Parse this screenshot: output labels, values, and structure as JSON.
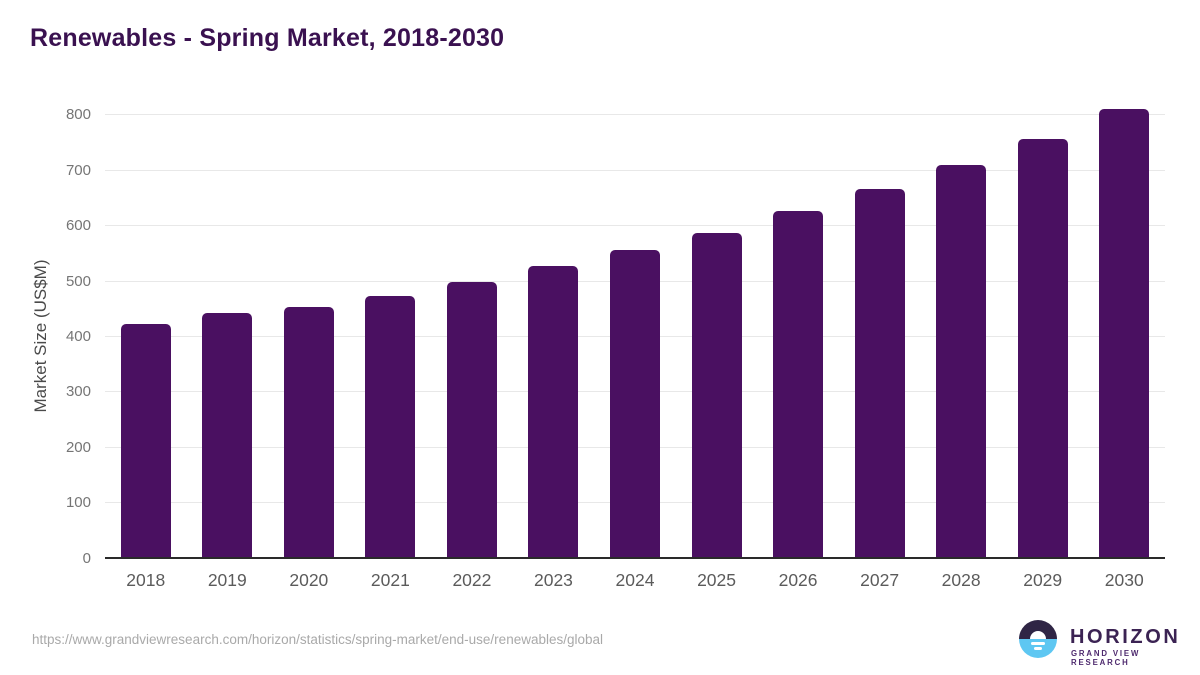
{
  "title": "Renewables - Spring Market, 2018-2030",
  "source_url": "https://www.grandviewresearch.com/horizon/statistics/spring-market/end-use/renewables/global",
  "logo": {
    "name": "HORIZON",
    "subtitle": "GRAND VIEW RESEARCH"
  },
  "colors": {
    "bar": "#4a1061",
    "title": "#3a1150",
    "tick": "#757575",
    "xtick": "#5b5b5b",
    "axis_label": "#4a4a4a",
    "gridline": "#e8e8e8",
    "axis_line": "#2a2a2a",
    "url": "#a9a9a9",
    "logo_dark": "#2f2545",
    "logo_blue": "#5ec7f2",
    "logo_text": "#3b2353",
    "logo_sub": "#4e2a6e"
  },
  "chart_data": {
    "type": "bar",
    "title": "Renewables - Spring Market, 2018-2030",
    "categories": [
      "2018",
      "2019",
      "2020",
      "2021",
      "2022",
      "2023",
      "2024",
      "2025",
      "2026",
      "2027",
      "2028",
      "2029",
      "2030"
    ],
    "values": [
      420,
      440,
      450,
      470,
      495,
      524,
      554,
      584,
      624,
      663,
      706,
      754,
      808
    ],
    "xlabel": "",
    "ylabel": "Market Size (US$M)",
    "ylim": [
      0,
      800
    ],
    "yticks": [
      0,
      100,
      200,
      300,
      400,
      500,
      600,
      700,
      800
    ],
    "grid": true,
    "legend": false,
    "bar_color": "#4a1061"
  }
}
